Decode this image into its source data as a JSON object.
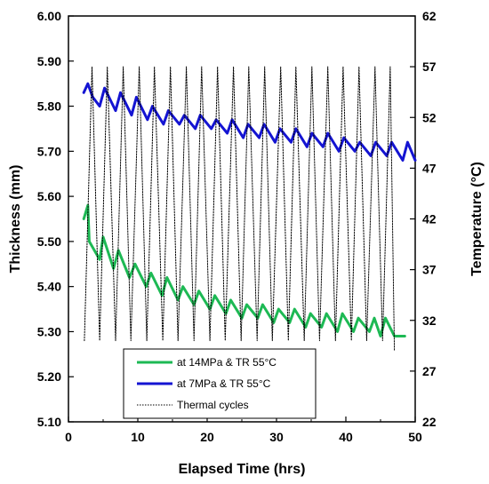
{
  "chart_data": {
    "type": "line",
    "xlabel": "Elapsed Time (hrs)",
    "ylabel": "Thickness (mm)",
    "y2label": "Temperature (°C)",
    "xlim": [
      0,
      50
    ],
    "ylim": [
      5.1,
      6.0
    ],
    "y2lim": [
      22,
      62
    ],
    "x_ticks": [
      "0",
      "10",
      "20",
      "30",
      "40",
      "50"
    ],
    "y_ticks": [
      "5.10",
      "5.20",
      "5.30",
      "5.40",
      "5.50",
      "5.60",
      "5.70",
      "5.80",
      "5.90",
      "6.00"
    ],
    "y2_ticks": [
      "22",
      "27",
      "32",
      "37",
      "42",
      "47",
      "52",
      "57",
      "62"
    ],
    "grid": false,
    "legend_placement": "bottom-center",
    "series": [
      {
        "name": "at 14MPa & TR 55°C",
        "axis": "left",
        "color": "#1db954",
        "style": "solid",
        "x": [
          2.2,
          2.8,
          3.0,
          4.5,
          5.0,
          6.5,
          7.2,
          8.8,
          9.6,
          11.2,
          11.9,
          13.5,
          14.2,
          15.8,
          16.5,
          18.1,
          18.8,
          20.4,
          21.1,
          22.7,
          23.4,
          25.0,
          25.7,
          27.3,
          28.0,
          29.6,
          30.3,
          31.9,
          32.6,
          34.2,
          34.9,
          36.5,
          37.2,
          38.8,
          39.5,
          41.1,
          41.8,
          43.4,
          44.1,
          45.0,
          45.7,
          47.0,
          48.5
        ],
        "y": [
          5.55,
          5.58,
          5.5,
          5.46,
          5.51,
          5.44,
          5.48,
          5.42,
          5.45,
          5.4,
          5.43,
          5.38,
          5.42,
          5.37,
          5.4,
          5.36,
          5.39,
          5.35,
          5.38,
          5.34,
          5.37,
          5.33,
          5.36,
          5.33,
          5.36,
          5.32,
          5.35,
          5.32,
          5.35,
          5.31,
          5.34,
          5.31,
          5.34,
          5.3,
          5.34,
          5.3,
          5.33,
          5.3,
          5.33,
          5.29,
          5.33,
          5.29,
          5.29
        ]
      },
      {
        "name": "at 7MPa & TR 55°C",
        "axis": "left",
        "color": "#1414d2",
        "style": "solid",
        "x": [
          2.2,
          2.8,
          3.5,
          4.5,
          5.2,
          6.8,
          7.5,
          9.1,
          9.8,
          11.4,
          12.1,
          13.7,
          14.4,
          16.0,
          16.7,
          18.3,
          19.0,
          20.6,
          21.3,
          22.9,
          23.6,
          25.2,
          25.9,
          27.5,
          28.2,
          29.8,
          30.5,
          32.1,
          32.8,
          34.4,
          35.1,
          36.7,
          37.4,
          39.0,
          39.7,
          41.3,
          42.0,
          43.6,
          44.3,
          45.9,
          46.6,
          48.2,
          48.9,
          50.0
        ],
        "y": [
          5.83,
          5.85,
          5.82,
          5.8,
          5.84,
          5.79,
          5.83,
          5.78,
          5.82,
          5.77,
          5.8,
          5.76,
          5.79,
          5.76,
          5.78,
          5.75,
          5.78,
          5.75,
          5.77,
          5.74,
          5.77,
          5.73,
          5.76,
          5.73,
          5.76,
          5.72,
          5.75,
          5.72,
          5.75,
          5.71,
          5.74,
          5.71,
          5.74,
          5.7,
          5.73,
          5.7,
          5.72,
          5.69,
          5.72,
          5.69,
          5.72,
          5.68,
          5.72,
          5.68
        ]
      },
      {
        "name": "Thermal cycles",
        "axis": "right",
        "color": "#000000",
        "style": "dotted",
        "x": [
          2.3,
          3.4,
          4.5,
          5.6,
          6.8,
          7.9,
          9.0,
          10.2,
          11.3,
          12.4,
          13.6,
          14.7,
          15.8,
          17.0,
          18.1,
          19.2,
          20.4,
          21.5,
          22.6,
          23.8,
          24.9,
          26.0,
          27.2,
          28.3,
          29.4,
          30.6,
          31.7,
          32.8,
          34.0,
          35.1,
          36.2,
          37.4,
          38.5,
          39.6,
          40.8,
          41.9,
          43.0,
          44.2,
          45.3,
          46.4,
          47.0
        ],
        "y": [
          30,
          57,
          30,
          57,
          30,
          57,
          30,
          57,
          30,
          57,
          30,
          57,
          30,
          57,
          30,
          57,
          30,
          57,
          30,
          57,
          30,
          57,
          30,
          57,
          30,
          57,
          30,
          57,
          30,
          57,
          30,
          57,
          30,
          57,
          30,
          57,
          30,
          57,
          30,
          57,
          29
        ]
      }
    ]
  }
}
